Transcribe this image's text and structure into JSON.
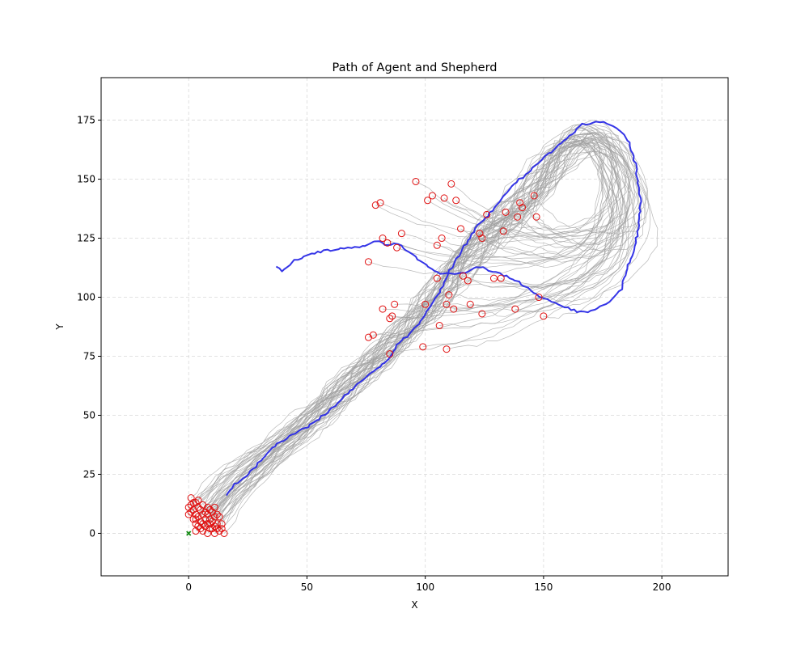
{
  "chart_data": {
    "type": "line",
    "title": "Path of Agent and Shepherd",
    "xlabel": "X",
    "ylabel": "Y",
    "xlim": [
      -37,
      228
    ],
    "ylim": [
      -18,
      193
    ],
    "x_ticks": [
      0,
      50,
      100,
      150,
      200
    ],
    "y_ticks": [
      0,
      25,
      50,
      75,
      100,
      125,
      150,
      175
    ],
    "grid": true,
    "colors": {
      "shepherd": "#2a2ae6",
      "agents": "#a0a0a0",
      "agent_start": "#e01010",
      "shepherd_start": "#138a13",
      "grid": "#d9d9d9"
    },
    "series": [
      {
        "role": "shepherd",
        "points": [
          [
            16,
            16
          ],
          [
            20,
            21
          ],
          [
            25,
            25
          ],
          [
            30,
            30
          ],
          [
            34,
            35
          ],
          [
            38,
            38
          ],
          [
            44,
            42
          ],
          [
            50,
            45
          ],
          [
            56,
            49
          ],
          [
            60,
            53
          ],
          [
            65,
            57
          ],
          [
            70,
            62
          ],
          [
            75,
            66
          ],
          [
            80,
            70
          ],
          [
            85,
            74
          ],
          [
            88,
            80
          ],
          [
            93,
            84
          ],
          [
            98,
            90
          ],
          [
            102,
            96
          ],
          [
            105,
            101
          ],
          [
            108,
            106
          ],
          [
            110,
            111
          ],
          [
            113,
            116
          ],
          [
            116,
            121
          ],
          [
            119,
            125
          ],
          [
            122,
            130
          ],
          [
            126,
            134
          ],
          [
            130,
            139
          ],
          [
            135,
            145
          ],
          [
            140,
            150
          ],
          [
            146,
            155
          ],
          [
            151,
            160
          ],
          [
            157,
            165
          ],
          [
            162,
            169
          ],
          [
            166,
            173
          ],
          [
            170,
            174
          ],
          [
            175,
            174
          ],
          [
            182,
            171
          ],
          [
            186,
            166
          ],
          [
            189,
            156
          ],
          [
            190,
            148
          ],
          [
            191,
            140
          ],
          [
            190,
            128
          ],
          [
            188,
            120
          ],
          [
            186,
            114
          ],
          [
            184,
            108
          ],
          [
            183,
            104
          ],
          [
            180,
            100
          ],
          [
            176,
            97
          ],
          [
            170,
            94
          ],
          [
            164,
            94
          ],
          [
            159,
            96
          ],
          [
            154,
            98
          ],
          [
            149,
            100
          ],
          [
            144,
            103
          ],
          [
            140,
            106
          ],
          [
            136,
            108
          ],
          [
            131,
            110
          ],
          [
            127,
            111
          ],
          [
            124,
            113
          ],
          [
            121,
            113
          ],
          [
            118,
            111
          ],
          [
            114,
            110
          ],
          [
            110,
            110
          ],
          [
            106,
            110
          ],
          [
            103,
            112
          ],
          [
            100,
            114
          ],
          [
            97,
            116
          ],
          [
            95,
            118
          ],
          [
            92,
            120
          ],
          [
            89,
            122
          ],
          [
            87,
            123
          ],
          [
            84,
            122
          ],
          [
            80,
            124
          ],
          [
            75,
            122
          ],
          [
            70,
            121
          ],
          [
            65,
            121
          ],
          [
            60,
            120
          ],
          [
            54,
            119
          ],
          [
            48,
            117
          ],
          [
            44,
            115
          ],
          [
            41,
            112
          ],
          [
            39,
            111
          ],
          [
            37,
            113
          ]
        ]
      }
    ],
    "agent_start_positions": [
      [
        0,
        11
      ],
      [
        0,
        8
      ],
      [
        1,
        15
      ],
      [
        1,
        12
      ],
      [
        1,
        9
      ],
      [
        2,
        10
      ],
      [
        2,
        6
      ],
      [
        3,
        13
      ],
      [
        3,
        8
      ],
      [
        3,
        4
      ],
      [
        3,
        1
      ],
      [
        4,
        14
      ],
      [
        4,
        11
      ],
      [
        4,
        7
      ],
      [
        4,
        3
      ],
      [
        5,
        10
      ],
      [
        5,
        5
      ],
      [
        6,
        12
      ],
      [
        6,
        8
      ],
      [
        6,
        1
      ],
      [
        7,
        6
      ],
      [
        7,
        3
      ],
      [
        8,
        11
      ],
      [
        8,
        8
      ],
      [
        8,
        4
      ],
      [
        8,
        0
      ],
      [
        9,
        10
      ],
      [
        9,
        6
      ],
      [
        9,
        2
      ],
      [
        10,
        9
      ],
      [
        10,
        5
      ],
      [
        11,
        11
      ],
      [
        11,
        7
      ],
      [
        11,
        3
      ],
      [
        11,
        0
      ],
      [
        12,
        8
      ],
      [
        12,
        4
      ],
      [
        13,
        1
      ],
      [
        14,
        4
      ],
      [
        15,
        0
      ],
      [
        13,
        7
      ],
      [
        10,
        2
      ],
      [
        7,
        9
      ],
      [
        5,
        2
      ],
      [
        3,
        6
      ],
      [
        12,
        2
      ],
      [
        6,
        4
      ],
      [
        9,
        4
      ],
      [
        2,
        13
      ],
      [
        14,
        2
      ]
    ],
    "agent_end_positions": [
      [
        76,
        115
      ],
      [
        79,
        139
      ],
      [
        81,
        140
      ],
      [
        82,
        125
      ],
      [
        84,
        123
      ],
      [
        88,
        121
      ],
      [
        90,
        127
      ],
      [
        96,
        149
      ],
      [
        101,
        141
      ],
      [
        103,
        143
      ],
      [
        108,
        142
      ],
      [
        111,
        148
      ],
      [
        113,
        141
      ],
      [
        115,
        129
      ],
      [
        107,
        125
      ],
      [
        105,
        122
      ],
      [
        123,
        127
      ],
      [
        124,
        125
      ],
      [
        133,
        128
      ],
      [
        140,
        140
      ],
      [
        141,
        138
      ],
      [
        146,
        143
      ],
      [
        139,
        134
      ],
      [
        147,
        134
      ],
      [
        82,
        95
      ],
      [
        87,
        97
      ],
      [
        85,
        91
      ],
      [
        86,
        92
      ],
      [
        76,
        83
      ],
      [
        78,
        84
      ],
      [
        85,
        76
      ],
      [
        99,
        79
      ],
      [
        109,
        78
      ],
      [
        106,
        88
      ],
      [
        109,
        97
      ],
      [
        112,
        95
      ],
      [
        110,
        101
      ],
      [
        100,
        97
      ],
      [
        105,
        108
      ],
      [
        116,
        109
      ],
      [
        118,
        107
      ],
      [
        119,
        97
      ],
      [
        124,
        93
      ],
      [
        129,
        108
      ],
      [
        132,
        108
      ],
      [
        138,
        95
      ],
      [
        148,
        100
      ],
      [
        150,
        92
      ],
      [
        134,
        136
      ],
      [
        126,
        135
      ]
    ]
  }
}
